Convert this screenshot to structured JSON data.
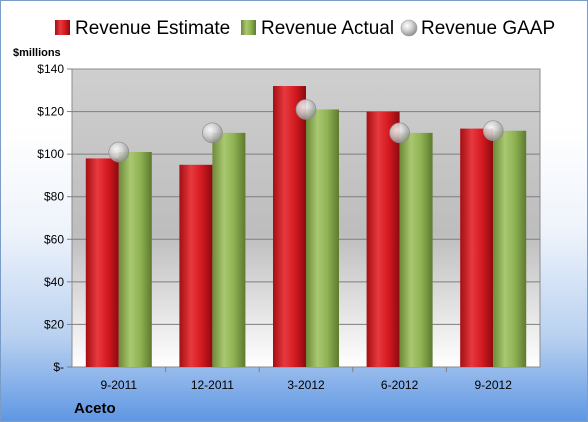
{
  "chart_data": {
    "type": "bar",
    "unit_label": "$millions",
    "company": "Aceto",
    "categories": [
      "9-2011",
      "12-2011",
      "3-2012",
      "6-2012",
      "9-2012"
    ],
    "series": [
      {
        "name": "Revenue Estimate",
        "kind": "bar",
        "color": "#d9181e",
        "values": [
          98,
          95,
          132,
          120,
          112
        ]
      },
      {
        "name": "Revenue Actual",
        "kind": "bar",
        "color": "#8fb254",
        "values": [
          101,
          110,
          121,
          110,
          111
        ]
      },
      {
        "name": "Revenue GAAP",
        "kind": "marker",
        "color": "#c8c8c8",
        "values": [
          101,
          110,
          121,
          110,
          111
        ]
      }
    ],
    "ylim": [
      0,
      140
    ],
    "yticks": [
      0,
      20,
      40,
      60,
      80,
      100,
      120,
      140
    ],
    "ytick_labels": [
      "$-",
      "$20",
      "$40",
      "$60",
      "$80",
      "$100",
      "$120",
      "$140"
    ],
    "grid": true,
    "legend_position": "top"
  }
}
